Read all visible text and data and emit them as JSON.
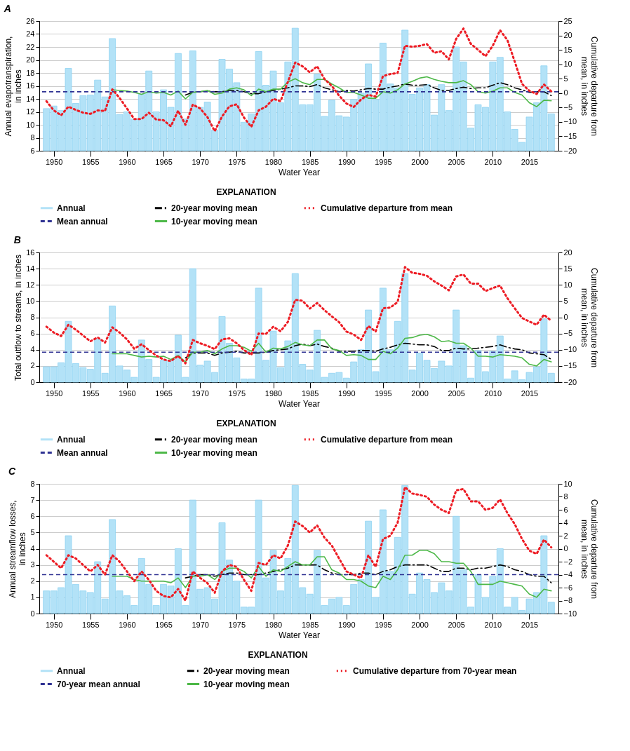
{
  "chart_data": [
    {
      "type": "bar",
      "title": "A",
      "xlabel": "Water Year",
      "ylabel": "Annual evapotranspiration,\nin inches",
      "y2label": "Cumulative departure from\nmean, in inches",
      "legend_title": "EXPLANATION",
      "legend": "bottom",
      "grid": "y",
      "x": [
        1949,
        1950,
        1951,
        1952,
        1953,
        1954,
        1955,
        1956,
        1957,
        1958,
        1959,
        1960,
        1961,
        1962,
        1963,
        1964,
        1965,
        1966,
        1967,
        1968,
        1969,
        1970,
        1971,
        1972,
        1973,
        1974,
        1975,
        1976,
        1977,
        1978,
        1979,
        1980,
        1981,
        1982,
        1983,
        1984,
        1985,
        1986,
        1987,
        1988,
        1989,
        1990,
        1991,
        1992,
        1993,
        1994,
        1995,
        1996,
        1997,
        1998,
        1999,
        2000,
        2001,
        2002,
        2003,
        2004,
        2005,
        2006,
        2007,
        2008,
        2009,
        2010,
        2011,
        2012,
        2013,
        2014,
        2015,
        2016,
        2017,
        2018
      ],
      "xlim": [
        1948.5,
        2018.5
      ],
      "xticks": [
        1950,
        1955,
        1960,
        1965,
        1970,
        1975,
        1980,
        1985,
        1990,
        1995,
        2000,
        2005,
        2010,
        2015
      ],
      "ylim": [
        6,
        26
      ],
      "yticks": [
        6,
        8,
        10,
        12,
        14,
        16,
        18,
        20,
        22,
        24,
        26
      ],
      "y2lim": [
        -20,
        25
      ],
      "y2ticks": [
        -20,
        -15,
        -10,
        -5,
        0,
        5,
        10,
        15,
        20,
        25
      ],
      "series": [
        {
          "name": "Annual",
          "type": "bar",
          "color": "#b3e2f7",
          "values": [
            12.5,
            12.9,
            12.2,
            18.7,
            13.3,
            14.5,
            14.6,
            16.9,
            14.3,
            23.3,
            11.6,
            12.0,
            10.9,
            14.7,
            18.3,
            12.0,
            15.4,
            12.7,
            21.0,
            10.9,
            21.4,
            12.7,
            13.5,
            9.2,
            20.1,
            18.6,
            16.5,
            10.4,
            11.7,
            21.3,
            16.1,
            18.3,
            13.4,
            19.7,
            24.9,
            13.1,
            13.1,
            17.8,
            11.3,
            13.8,
            11.4,
            11.2,
            13.9,
            14.9,
            19.4,
            13.9,
            22.6,
            16.3,
            15.7,
            24.6,
            14.7,
            15.7,
            16.2,
            11.5,
            16.2,
            12.2,
            22.0,
            19.7,
            9.5,
            13.1,
            12.7,
            19.7,
            20.4,
            12.0,
            9.3,
            7.3,
            11.2,
            13.4,
            19.1,
            11.7
          ]
        },
        {
          "name": "20-year moving mean",
          "type": "line",
          "color": "#000000",
          "line_style": "dashdot",
          "values": [
            null,
            null,
            null,
            null,
            null,
            null,
            null,
            null,
            null,
            null,
            null,
            null,
            null,
            null,
            null,
            null,
            null,
            null,
            null,
            14.6,
            15.0,
            15.1,
            15.2,
            15.1,
            15.1,
            15.3,
            15.3,
            15.1,
            14.8,
            14.8,
            15.1,
            15.3,
            15.5,
            15.7,
            16.0,
            16.0,
            15.9,
            16.2,
            15.7,
            15.4,
            15.1,
            15.3,
            15.2,
            15.4,
            15.6,
            15.5,
            15.5,
            15.8,
            16.0,
            16.3,
            16.1,
            16.1,
            16.2,
            15.7,
            15.3,
            15.3,
            15.6,
            15.8,
            15.6,
            15.7,
            15.7,
            16.1,
            16.5,
            16.2,
            15.7,
            15.4,
            15.0,
            15.1,
            15.1,
            14.5
          ]
        },
        {
          "name": "Cumulative departure from mean",
          "type": "line",
          "axis": "y2",
          "color": "#ed1c24",
          "line_style": "dotted",
          "values": [
            -2.8,
            -6.0,
            -7.7,
            -4.7,
            -5.8,
            -6.8,
            -7.2,
            -6.0,
            -6.2,
            1.3,
            -1.7,
            -5.3,
            -9.0,
            -9.0,
            -6.8,
            -9.2,
            -9.4,
            -11.5,
            -6.1,
            -11.0,
            -4.0,
            -5.3,
            -8.3,
            -13.2,
            -8.1,
            -4.6,
            -3.9,
            -8.5,
            -11.7,
            -6.0,
            -4.7,
            -2.0,
            -2.8,
            3.9,
            10.6,
            9.3,
            7.2,
            9.3,
            4.9,
            2.5,
            -0.9,
            -3.6,
            -4.8,
            -2.2,
            -0.6,
            -1.2,
            5.9,
            6.6,
            7.0,
            16.4,
            16.1,
            16.4,
            17.0,
            14.0,
            14.5,
            11.7,
            18.8,
            22.4,
            17.1,
            15.0,
            12.8,
            16.4,
            21.8,
            18.4,
            11.0,
            3.2,
            0.8,
            -0.3,
            3.0,
            0.6
          ]
        },
        {
          "name": "10-year moving mean",
          "type": "line",
          "color": "#4db848",
          "line_style": "solid",
          "values": [
            null,
            null,
            null,
            null,
            null,
            null,
            null,
            null,
            null,
            15.4,
            15.3,
            15.2,
            15.0,
            14.7,
            15.1,
            14.9,
            15.0,
            14.6,
            15.2,
            14.0,
            15.0,
            15.1,
            15.3,
            14.7,
            14.9,
            15.5,
            15.7,
            15.4,
            14.5,
            15.5,
            15.1,
            15.5,
            15.5,
            16.6,
            17.1,
            16.5,
            16.2,
            17.0,
            17.0,
            16.3,
            15.7,
            15.0,
            15.0,
            14.6,
            14.1,
            14.1,
            15.1,
            14.9,
            15.4,
            16.3,
            16.7,
            17.2,
            17.4,
            17.0,
            16.7,
            16.5,
            16.5,
            16.8,
            16.2,
            15.1,
            14.9,
            15.2,
            15.7,
            15.7,
            15.0,
            14.6,
            13.4,
            12.8,
            13.8,
            13.7
          ]
        }
      ],
      "ref_lines": [
        {
          "axis": "y",
          "value": 15.1,
          "label": "Mean annual",
          "color": "#2e3192",
          "line_style": "dashed"
        }
      ]
    },
    {
      "type": "bar",
      "title": "B",
      "xlabel": "Water Year",
      "ylabel": "Total outflow to streams, in inches",
      "y2label": "Cumulative departure from\nmean, in inches",
      "legend_title": "EXPLANATION",
      "legend": "bottom",
      "grid": "y",
      "x": [
        1949,
        1950,
        1951,
        1952,
        1953,
        1954,
        1955,
        1956,
        1957,
        1958,
        1959,
        1960,
        1961,
        1962,
        1963,
        1964,
        1965,
        1966,
        1967,
        1968,
        1969,
        1970,
        1971,
        1972,
        1973,
        1974,
        1975,
        1976,
        1977,
        1978,
        1979,
        1980,
        1981,
        1982,
        1983,
        1984,
        1985,
        1986,
        1987,
        1988,
        1989,
        1990,
        1991,
        1992,
        1993,
        1994,
        1995,
        1996,
        1997,
        1998,
        1999,
        2000,
        2001,
        2002,
        2003,
        2004,
        2005,
        2006,
        2007,
        2008,
        2009,
        2010,
        2011,
        2012,
        2013,
        2014,
        2015,
        2016,
        2017,
        2018
      ],
      "xlim": [
        1948.5,
        2018.5
      ],
      "xticks": [
        1950,
        1955,
        1960,
        1965,
        1970,
        1975,
        1980,
        1985,
        1990,
        1995,
        2000,
        2005,
        2010,
        2015
      ],
      "ylim": [
        0,
        16
      ],
      "yticks": [
        0,
        2,
        4,
        6,
        8,
        10,
        12,
        14,
        16
      ],
      "y2lim": [
        -20,
        20
      ],
      "y2ticks": [
        -20,
        -15,
        -10,
        -5,
        0,
        5,
        10,
        15,
        20
      ],
      "series": [
        {
          "name": "Annual",
          "type": "bar",
          "color": "#b3e2f7",
          "values": [
            1.9,
            1.9,
            2.4,
            7.5,
            2.3,
            1.8,
            1.6,
            5.3,
            1.1,
            9.4,
            2.0,
            1.5,
            0.6,
            5.2,
            2.8,
            0.6,
            2.7,
            2.7,
            5.8,
            0.6,
            14.0,
            2.1,
            2.6,
            1.2,
            8.1,
            4.8,
            3.0,
            0.4,
            0.4,
            11.6,
            2.7,
            6.3,
            1.8,
            5.1,
            13.4,
            2.2,
            1.5,
            6.4,
            0.6,
            1.1,
            1.2,
            0.5,
            2.5,
            4.0,
            8.9,
            1.3,
            11.6,
            4.0,
            7.5,
            13.4,
            1.5,
            3.6,
            2.7,
            1.7,
            2.6,
            2.0,
            8.9,
            4.5,
            0.5,
            3.9,
            1.3,
            3.8,
            5.7,
            0.4,
            1.4,
            0.3,
            1.2,
            1.9,
            7.8,
            1.1
          ]
        },
        {
          "name": "20-year moving mean",
          "type": "line",
          "color": "#000000",
          "line_style": "dashdot",
          "values": [
            null,
            null,
            null,
            null,
            null,
            null,
            null,
            null,
            null,
            null,
            null,
            null,
            null,
            null,
            null,
            null,
            null,
            null,
            null,
            3.0,
            3.6,
            3.6,
            3.6,
            3.3,
            3.6,
            3.7,
            3.8,
            3.6,
            3.6,
            3.6,
            3.7,
            3.9,
            4.0,
            4.1,
            4.5,
            4.7,
            4.5,
            4.7,
            4.4,
            4.2,
            3.8,
            3.8,
            3.8,
            3.9,
            3.9,
            3.8,
            4.1,
            4.3,
            4.6,
            4.8,
            4.7,
            4.6,
            4.6,
            4.4,
            3.9,
            3.9,
            4.2,
            4.1,
            4.1,
            4.2,
            4.3,
            4.4,
            4.6,
            4.3,
            4.1,
            4.0,
            3.6,
            3.5,
            3.4,
            2.8
          ]
        },
        {
          "name": "Cumulative departure from mean",
          "type": "line",
          "axis": "y2",
          "color": "#ed1c24",
          "line_style": "dotted",
          "values": [
            -2.9,
            -4.7,
            -5.8,
            -2.3,
            -3.8,
            -5.6,
            -7.4,
            -6.2,
            -7.8,
            -3.1,
            -4.7,
            -6.8,
            -9.7,
            -8.3,
            -10.1,
            -11.8,
            -13.0,
            -13.5,
            -11.9,
            -14.2,
            -7.0,
            -8.0,
            -8.8,
            -9.8,
            -6.8,
            -6.5,
            -8.0,
            -10.1,
            -11.6,
            -5.0,
            -5.1,
            -2.9,
            -4.3,
            -1.4,
            5.4,
            5.1,
            2.7,
            4.4,
            2.2,
            0.3,
            -1.5,
            -4.4,
            -5.3,
            -7.0,
            -2.7,
            -4.4,
            2.8,
            3.0,
            4.7,
            15.5,
            13.7,
            13.4,
            12.8,
            11.1,
            9.8,
            8.3,
            12.6,
            13.2,
            10.4,
            10.4,
            8.1,
            9.0,
            9.8,
            5.9,
            2.8,
            -0.2,
            -1.3,
            -2.3,
            0.8,
            -1.1
          ]
        },
        {
          "name": "10-year moving mean",
          "type": "line",
          "color": "#4db848",
          "line_style": "solid",
          "values": [
            null,
            null,
            null,
            null,
            null,
            null,
            null,
            null,
            null,
            3.5,
            3.5,
            3.5,
            3.3,
            3.1,
            3.2,
            3.1,
            3.2,
            2.8,
            3.3,
            2.5,
            3.7,
            3.7,
            3.9,
            3.5,
            4.1,
            4.5,
            4.5,
            4.3,
            3.8,
            4.8,
            3.7,
            4.2,
            4.1,
            4.4,
            4.9,
            4.6,
            4.5,
            5.2,
            5.2,
            4.1,
            3.9,
            3.3,
            3.4,
            3.3,
            2.8,
            2.8,
            3.8,
            3.5,
            4.2,
            5.4,
            5.5,
            5.8,
            5.9,
            5.6,
            5.0,
            5.1,
            4.8,
            4.8,
            4.2,
            3.2,
            3.2,
            3.1,
            3.4,
            3.3,
            3.2,
            3.0,
            2.2,
            2.0,
            2.8,
            2.5
          ]
        }
      ],
      "ref_lines": [
        {
          "axis": "y",
          "value": 3.7,
          "label": "Mean annual",
          "color": "#2e3192",
          "line_style": "dashed"
        }
      ]
    },
    {
      "type": "bar",
      "title": "C",
      "xlabel": "Water Year",
      "ylabel": "Annual streamflow losses,\nin inches",
      "y2label": "Cumulative departure from\nmean, in inches",
      "legend_title": "EXPLANATION",
      "legend": "bottom",
      "grid": "y",
      "x": [
        1949,
        1950,
        1951,
        1952,
        1953,
        1954,
        1955,
        1956,
        1957,
        1958,
        1959,
        1960,
        1961,
        1962,
        1963,
        1964,
        1965,
        1966,
        1967,
        1968,
        1969,
        1970,
        1971,
        1972,
        1973,
        1974,
        1975,
        1976,
        1977,
        1978,
        1979,
        1980,
        1981,
        1982,
        1983,
        1984,
        1985,
        1986,
        1987,
        1988,
        1989,
        1990,
        1991,
        1992,
        1993,
        1994,
        1995,
        1996,
        1997,
        1998,
        1999,
        2000,
        2001,
        2002,
        2003,
        2004,
        2005,
        2006,
        2007,
        2008,
        2009,
        2010,
        2011,
        2012,
        2013,
        2014,
        2015,
        2016,
        2017,
        2018
      ],
      "xlim": [
        1948.5,
        2018.5
      ],
      "xticks": [
        1950,
        1955,
        1960,
        1965,
        1970,
        1975,
        1980,
        1985,
        1990,
        1995,
        2000,
        2005,
        2010,
        2015
      ],
      "ylim": [
        0,
        8
      ],
      "yticks": [
        0,
        1,
        2,
        3,
        4,
        5,
        6,
        7,
        8
      ],
      "y2lim": [
        -10,
        10
      ],
      "y2ticks": [
        -10,
        -8,
        -6,
        -4,
        -2,
        0,
        2,
        4,
        6,
        8,
        10
      ],
      "series": [
        {
          "name": "Annual",
          "type": "bar",
          "color": "#b3e2f7",
          "values": [
            1.4,
            1.4,
            1.6,
            4.8,
            1.8,
            1.4,
            1.3,
            3.2,
            0.9,
            5.8,
            1.4,
            1.1,
            0.5,
            3.4,
            1.8,
            0.5,
            1.8,
            1.7,
            4.0,
            0.5,
            7.0,
            1.5,
            1.6,
            0.9,
            5.6,
            3.3,
            2.0,
            0.4,
            0.4,
            7.0,
            2.2,
            3.9,
            1.4,
            3.4,
            7.9,
            1.6,
            1.2,
            3.9,
            0.5,
            0.9,
            1.0,
            0.5,
            1.8,
            2.1,
            5.7,
            1.0,
            6.4,
            2.6,
            4.7,
            7.9,
            1.2,
            2.5,
            2.1,
            1.3,
            1.9,
            1.4,
            6.0,
            2.7,
            0.4,
            2.4,
            1.0,
            2.3,
            4.0,
            0.4,
            1.0,
            0.2,
            0.9,
            1.3,
            4.8,
            0.7
          ]
        },
        {
          "name": "20-year moving mean",
          "type": "line",
          "color": "#000000",
          "line_style": "dashdot",
          "values": [
            null,
            null,
            null,
            null,
            null,
            null,
            null,
            null,
            null,
            null,
            null,
            null,
            null,
            null,
            null,
            null,
            null,
            null,
            null,
            2.2,
            2.3,
            2.4,
            2.4,
            2.3,
            2.4,
            2.5,
            2.5,
            2.4,
            2.4,
            2.4,
            2.5,
            2.6,
            2.7,
            2.8,
            3.0,
            3.0,
            3.0,
            3.0,
            2.7,
            2.5,
            2.4,
            2.4,
            2.4,
            2.5,
            2.5,
            2.4,
            2.6,
            2.7,
            2.9,
            3.0,
            3.0,
            3.0,
            3.0,
            2.8,
            2.6,
            2.6,
            2.8,
            2.8,
            2.7,
            2.8,
            2.8,
            2.9,
            3.0,
            2.9,
            2.7,
            2.6,
            2.4,
            2.3,
            2.3,
            1.9
          ]
        },
        {
          "name": "Cumulative departure from 70-year mean",
          "type": "line",
          "axis": "y2",
          "color": "#ed1c24",
          "line_style": "dotted",
          "values": [
            -1.0,
            -2.0,
            -3.0,
            -1.0,
            -1.5,
            -2.5,
            -3.5,
            -2.5,
            -4.0,
            -1.0,
            -2.0,
            -3.5,
            -5.0,
            -3.5,
            -4.8,
            -6.5,
            -7.3,
            -7.5,
            -6.2,
            -8.0,
            -3.5,
            -4.5,
            -5.3,
            -6.8,
            -3.5,
            -2.5,
            -2.8,
            -4.8,
            -6.5,
            -2.2,
            -2.5,
            -1.0,
            -1.5,
            0.5,
            4.2,
            3.5,
            2.5,
            3.6,
            1.7,
            0.5,
            -1.5,
            -3.5,
            -4.0,
            -4.5,
            -1.0,
            -2.8,
            1.5,
            2.0,
            4.0,
            9.5,
            8.5,
            8.3,
            8.0,
            6.8,
            6.0,
            5.5,
            9.0,
            9.2,
            7.3,
            7.3,
            6.0,
            6.3,
            7.6,
            5.5,
            3.8,
            1.5,
            -0.3,
            -0.8,
            1.4,
            0.2
          ]
        },
        {
          "name": "10-year moving mean",
          "type": "line",
          "color": "#4db848",
          "line_style": "solid",
          "values": [
            null,
            null,
            null,
            null,
            null,
            null,
            null,
            null,
            null,
            2.3,
            2.3,
            2.3,
            2.1,
            2.0,
            2.0,
            2.0,
            2.0,
            1.9,
            2.2,
            1.6,
            2.3,
            2.3,
            2.4,
            2.1,
            2.6,
            2.8,
            2.8,
            2.6,
            2.2,
            2.9,
            2.3,
            2.7,
            2.6,
            2.9,
            3.2,
            3.0,
            3.0,
            3.5,
            3.5,
            2.7,
            2.5,
            2.1,
            2.1,
            2.0,
            1.7,
            1.6,
            2.3,
            2.1,
            2.7,
            3.6,
            3.6,
            3.9,
            3.9,
            3.7,
            3.2,
            3.2,
            3.1,
            3.1,
            2.6,
            1.8,
            1.8,
            1.8,
            2.0,
            1.9,
            1.8,
            1.7,
            1.2,
            1.0,
            1.5,
            1.4
          ]
        }
      ],
      "ref_lines": [
        {
          "axis": "y",
          "value": 2.4,
          "label": "70-year mean annual",
          "color": "#2e3192",
          "line_style": "dashed"
        }
      ]
    }
  ]
}
